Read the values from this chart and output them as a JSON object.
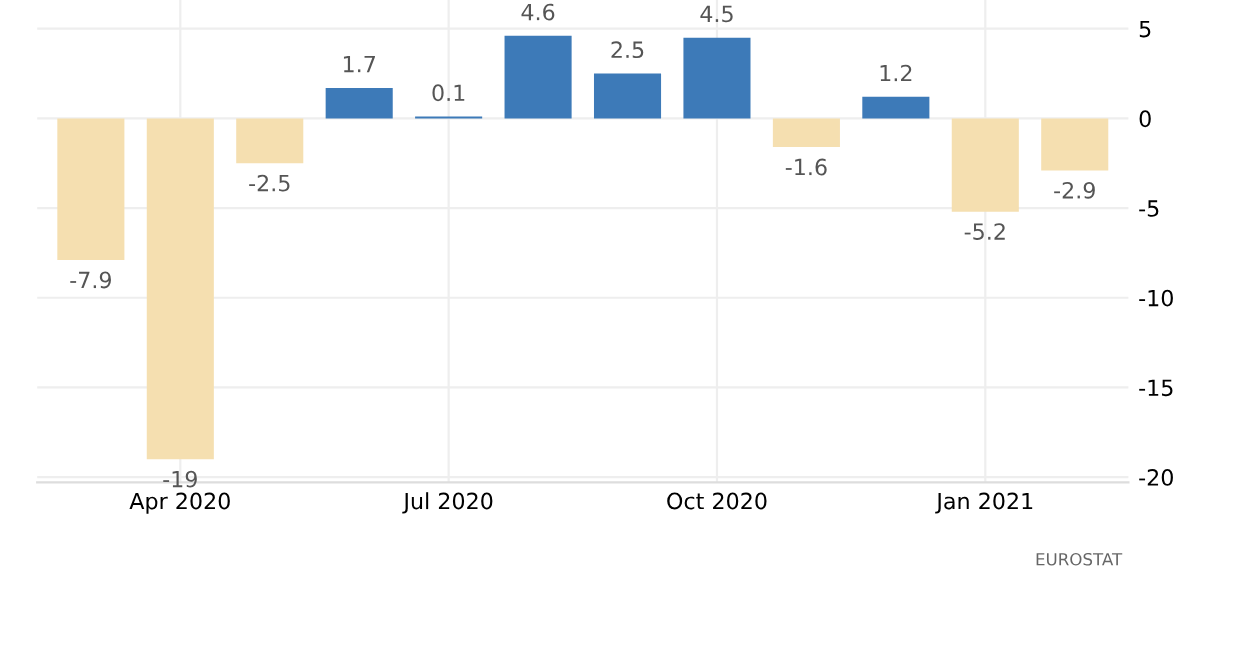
{
  "chart_data": {
    "type": "bar",
    "categories": [
      null,
      "Apr 2020",
      null,
      null,
      "Jul 2020",
      null,
      null,
      "Oct 2020",
      null,
      null,
      "Jan 2021",
      null
    ],
    "values": [
      -7.9,
      -19,
      -2.5,
      1.7,
      0.1,
      4.6,
      2.5,
      4.5,
      -1.6,
      1.2,
      -5.2,
      -2.9
    ],
    "colors": [
      "#f5dfb0",
      "#f5dfb0",
      "#f5dfb0",
      "#3d7ab8",
      "#3d7ab8",
      "#3d7ab8",
      "#3d7ab8",
      "#3d7ab8",
      "#f5dfb0",
      "#3d7ab8",
      "#f5dfb0",
      "#f5dfb0"
    ],
    "data_labels": true,
    "ylim": [
      -20.3,
      6.6
    ],
    "yticks": [
      -20,
      -15,
      -10,
      -5,
      0,
      5
    ],
    "grid": true,
    "annotations": [
      "EUROSTAT"
    ]
  }
}
